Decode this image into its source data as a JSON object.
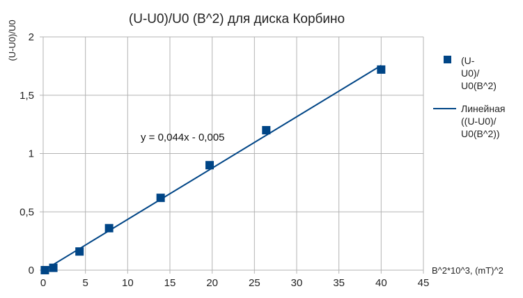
{
  "chart_data": {
    "type": "scatter",
    "title": "(U-U0)/U0 (B^2) для диска Корбино",
    "xlabel": "B^2*10^3, (mT)^2",
    "ylabel": "(U-U0)/U0",
    "xlim": [
      0,
      45
    ],
    "ylim": [
      0,
      2
    ],
    "x_ticks": [
      "0",
      "5",
      "10",
      "15",
      "20",
      "25",
      "30",
      "35",
      "40",
      "45"
    ],
    "y_ticks": [
      "0",
      "0,5",
      "1",
      "1,5",
      "2"
    ],
    "grid": true,
    "legend_position": "right",
    "series": [
      {
        "name_lines": [
          "(U-",
          "U0)/",
          "U0(B^2)"
        ],
        "marker": "square",
        "color": "#004586",
        "points": [
          {
            "x": 0.2,
            "y": 0.0
          },
          {
            "x": 1.2,
            "y": 0.02
          },
          {
            "x": 4.3,
            "y": 0.16
          },
          {
            "x": 7.8,
            "y": 0.36
          },
          {
            "x": 13.9,
            "y": 0.62
          },
          {
            "x": 19.7,
            "y": 0.9
          },
          {
            "x": 26.4,
            "y": 1.2
          },
          {
            "x": 40.0,
            "y": 1.72
          }
        ]
      }
    ],
    "trendline": {
      "name_lines": [
        "Линейная",
        "((U-U0)/",
        "U0(B^2))"
      ],
      "slope": 0.044,
      "intercept": -0.005,
      "x_range": [
        0,
        40
      ],
      "color": "#004586",
      "equation": "y = 0,044x - 0,005"
    }
  }
}
